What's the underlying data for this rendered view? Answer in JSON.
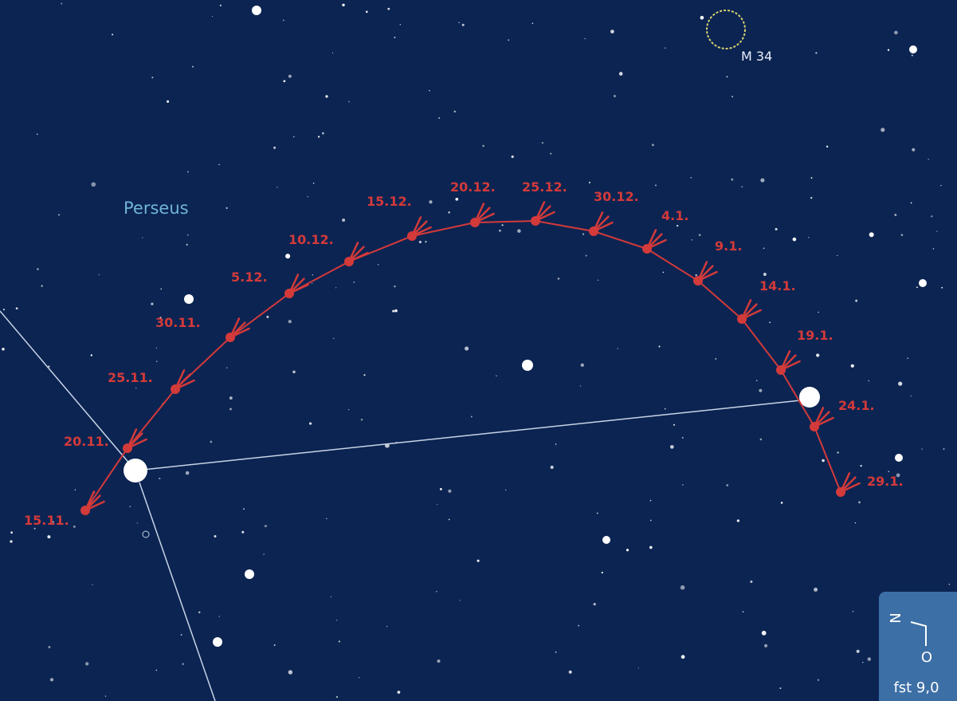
{
  "constellation": "Perseus",
  "deep_sky": {
    "label": "M 34"
  },
  "comet_path": {
    "points": [
      {
        "label": "15.11."
      },
      {
        "label": "20.11."
      },
      {
        "label": "25.11."
      },
      {
        "label": "30.11."
      },
      {
        "label": "5.12."
      },
      {
        "label": "10.12."
      },
      {
        "label": "15.12."
      },
      {
        "label": "20.12."
      },
      {
        "label": "25.12."
      },
      {
        "label": "30.12."
      },
      {
        "label": "4.1."
      },
      {
        "label": "9.1."
      },
      {
        "label": "14.1."
      },
      {
        "label": "19.1."
      },
      {
        "label": "24.1."
      },
      {
        "label": "29.1."
      }
    ]
  },
  "compass": {
    "north": "N",
    "east": "O",
    "limit": "fst 9,0"
  }
}
